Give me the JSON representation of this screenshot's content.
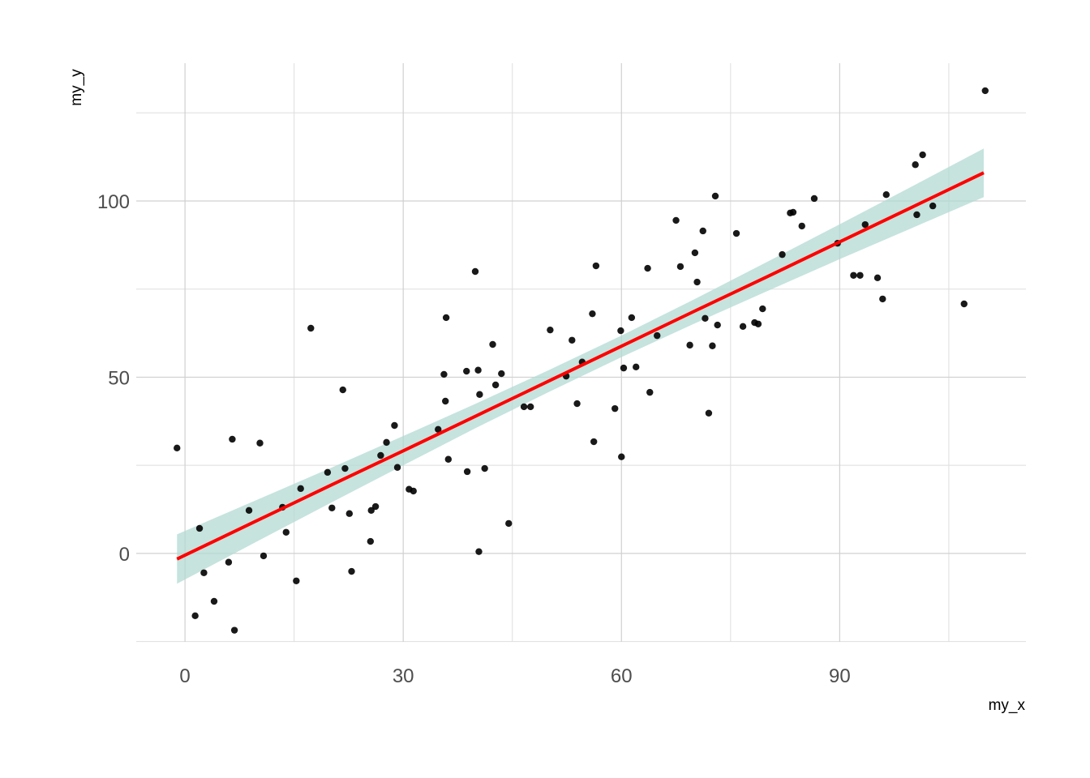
{
  "chart_data": {
    "type": "scatter",
    "x_label": "my_x",
    "y_label": "my_y",
    "xlim": [
      -6.7,
      115.6
    ],
    "ylim": [
      -25.1,
      139.1
    ],
    "xticks": [
      0,
      30,
      60,
      90
    ],
    "yticks": [
      0,
      50,
      100
    ],
    "grid": true,
    "series": [
      {
        "color": "#000000",
        "x": [
          -1.1,
          2.0,
          1.4,
          2.6,
          4.0,
          6.0,
          6.5,
          6.8,
          8.8,
          10.3,
          10.8,
          13.4,
          13.9,
          15.3,
          15.9,
          17.3,
          19.6,
          20.2,
          21.7,
          22.0,
          22.6,
          22.9,
          25.5,
          25.6,
          26.2,
          26.9,
          27.7,
          28.8,
          29.2,
          30.8,
          31.4,
          34.8,
          35.6,
          35.8,
          35.9,
          36.2,
          38.7,
          38.8,
          39.9,
          40.3,
          40.4,
          40.5,
          41.2,
          42.3,
          42.7,
          43.5,
          44.5,
          46.6,
          47.5,
          50.2,
          52.4,
          53.2,
          53.9,
          54.6,
          56.0,
          56.2,
          56.5,
          59.1,
          59.9,
          60.0,
          60.3,
          61.4,
          62.0,
          63.6,
          63.9,
          64.9,
          67.5,
          68.1,
          69.4,
          70.1,
          70.4,
          71.2,
          71.5,
          72.0,
          72.5,
          72.9,
          73.2,
          75.8,
          76.7,
          78.3,
          78.8,
          79.4,
          82.1,
          83.2,
          83.6,
          84.8,
          86.5,
          89.7,
          91.9,
          92.8,
          93.5,
          95.2,
          95.9,
          96.4,
          100.4,
          100.6,
          101.4,
          102.8,
          107.1,
          110.0
        ],
        "values": [
          29.9,
          7.1,
          -17.7,
          -5.5,
          -13.6,
          -2.5,
          32.4,
          -21.8,
          12.2,
          31.3,
          -0.7,
          13.1,
          6.0,
          -7.8,
          18.4,
          63.9,
          23.0,
          12.9,
          46.4,
          24.1,
          11.3,
          -5.1,
          3.4,
          12.2,
          13.3,
          27.8,
          31.5,
          36.3,
          24.4,
          18.2,
          17.7,
          35.2,
          50.8,
          43.2,
          66.9,
          26.7,
          51.7,
          23.2,
          80.0,
          52.0,
          0.5,
          45.1,
          24.1,
          59.3,
          47.8,
          51.0,
          8.5,
          41.6,
          41.6,
          63.4,
          50.3,
          60.5,
          42.5,
          54.3,
          68.0,
          31.7,
          81.6,
          41.1,
          63.2,
          27.4,
          52.6,
          66.9,
          52.9,
          80.9,
          45.7,
          61.8,
          94.5,
          81.4,
          59.1,
          85.3,
          77.0,
          91.5,
          66.7,
          39.8,
          58.9,
          101.4,
          64.8,
          90.8,
          64.4,
          65.5,
          65.1,
          69.4,
          84.8,
          96.6,
          96.8,
          92.9,
          100.7,
          88.0,
          78.9,
          78.9,
          93.3,
          78.2,
          72.2,
          101.8,
          110.3,
          96.1,
          113.1,
          98.6,
          70.8,
          131.3
        ]
      }
    ],
    "fit": {
      "color": "#ff0000",
      "band_color": "#b3d9d3",
      "x": [
        -1.1,
        10,
        20,
        30,
        40,
        50,
        60,
        70,
        80,
        90,
        100,
        109.8
      ],
      "values": [
        -1.6,
        9.4,
        19.3,
        29.1,
        39.0,
        48.9,
        58.8,
        68.7,
        78.5,
        88.4,
        98.3,
        108.0
      ],
      "lower": [
        -8.6,
        3.5,
        14.3,
        25.0,
        35.6,
        45.8,
        55.7,
        65.2,
        74.4,
        83.5,
        92.4,
        101.1
      ],
      "upper": [
        5.4,
        15.3,
        24.2,
        33.3,
        42.5,
        52.0,
        61.8,
        72.1,
        82.7,
        93.4,
        104.2,
        114.9
      ]
    }
  }
}
